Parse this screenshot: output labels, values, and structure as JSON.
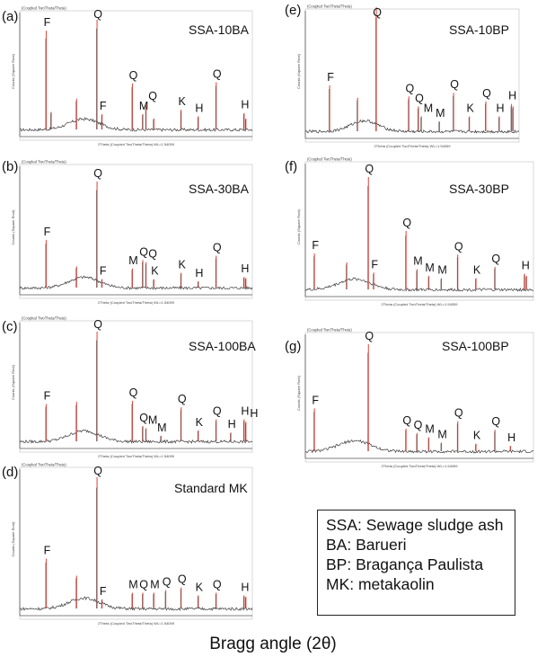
{
  "chart_data": [
    {
      "panel": "(a)",
      "sample": "SSA-10BA",
      "type": "line",
      "header": "(Coupled TwoTheta/Theta)",
      "ylabel": "Counts (Square Root)",
      "xlabel": "2Theta (Coupled TwoTheta/Theta) WL=1.54059",
      "xlim": [
        5,
        70
      ],
      "peaks": [
        {
          "x": 12.4,
          "h": 0.9,
          "label": "F"
        },
        {
          "x": 13.8,
          "h": 0.16,
          "label": ""
        },
        {
          "x": 20.9,
          "h": 0.28,
          "label": ""
        },
        {
          "x": 26.6,
          "h": 1.0,
          "label": "Q"
        },
        {
          "x": 28.0,
          "h": 0.14,
          "label": "F"
        },
        {
          "x": 36.5,
          "h": 0.42,
          "label": "Q"
        },
        {
          "x": 39.4,
          "h": 0.14,
          "label": "M"
        },
        {
          "x": 40.3,
          "h": 0.23,
          "label": "Q"
        },
        {
          "x": 42.5,
          "h": 0.1,
          "label": ""
        },
        {
          "x": 50.1,
          "h": 0.18,
          "label": "K"
        },
        {
          "x": 54.9,
          "h": 0.12,
          "label": "H"
        },
        {
          "x": 59.9,
          "h": 0.43,
          "label": "Q"
        },
        {
          "x": 67.7,
          "h": 0.15,
          "label": "H"
        },
        {
          "x": 68.2,
          "h": 0.1,
          "label": ""
        }
      ]
    },
    {
      "panel": "(b)",
      "sample": "SSA-30BA",
      "type": "line",
      "header": "(Coupled TwoTheta/Theta)",
      "ylabel": "Counts (Square Root)",
      "xlabel": "2Theta (Coupled TwoTheta/Theta) WL=1.54059",
      "xlim": [
        5,
        70
      ],
      "peaks": [
        {
          "x": 12.4,
          "h": 0.45,
          "label": "F"
        },
        {
          "x": 20.9,
          "h": 0.2,
          "label": ""
        },
        {
          "x": 26.6,
          "h": 1.0,
          "label": "Q"
        },
        {
          "x": 28.0,
          "h": 0.08,
          "label": "F"
        },
        {
          "x": 36.5,
          "h": 0.18,
          "label": "M"
        },
        {
          "x": 39.4,
          "h": 0.26,
          "label": "Q"
        },
        {
          "x": 40.3,
          "h": 0.24,
          "label": "Q"
        },
        {
          "x": 42.5,
          "h": 0.08,
          "label": "K"
        },
        {
          "x": 50.1,
          "h": 0.14,
          "label": "K"
        },
        {
          "x": 54.9,
          "h": 0.06,
          "label": "H"
        },
        {
          "x": 59.9,
          "h": 0.3,
          "label": "Q"
        },
        {
          "x": 67.7,
          "h": 0.1,
          "label": "H"
        },
        {
          "x": 68.2,
          "h": 0.09,
          "label": ""
        }
      ]
    },
    {
      "panel": "(c)",
      "sample": "SSA-100BA",
      "type": "line",
      "header": "(Coupled TwoTheta/Theta)",
      "ylabel": "Counts (Square Root)",
      "xlabel": "2Theta (Coupled TwoTheta/Theta) WL=1.54059",
      "xlim": [
        5,
        70
      ],
      "peaks": [
        {
          "x": 12.4,
          "h": 0.34,
          "label": "F"
        },
        {
          "x": 20.9,
          "h": 0.36,
          "label": ""
        },
        {
          "x": 26.6,
          "h": 1.0,
          "label": "Q"
        },
        {
          "x": 36.5,
          "h": 0.37,
          "label": "Q"
        },
        {
          "x": 39.4,
          "h": 0.14,
          "label": "Q"
        },
        {
          "x": 40.3,
          "h": 0.12,
          "label": "M"
        },
        {
          "x": 44.5,
          "h": 0.05,
          "label": "M"
        },
        {
          "x": 50.1,
          "h": 0.31,
          "label": "Q"
        },
        {
          "x": 54.9,
          "h": 0.1,
          "label": "K"
        },
        {
          "x": 59.9,
          "h": 0.2,
          "label": "Q"
        },
        {
          "x": 64.0,
          "h": 0.08,
          "label": "H"
        },
        {
          "x": 67.7,
          "h": 0.2,
          "label": "H"
        },
        {
          "x": 68.2,
          "h": 0.18,
          "label": "H"
        }
      ]
    },
    {
      "panel": "(d)",
      "sample": "Standard MK",
      "type": "line",
      "header": "(Coupled TwoTheta/Theta)",
      "ylabel": "Counts (Square Root)",
      "xlabel": "2Theta (Coupled TwoTheta/Theta) WL=1.54059",
      "xlim": [
        5,
        70
      ],
      "peaks": [
        {
          "x": 12.4,
          "h": 0.38,
          "label": "F"
        },
        {
          "x": 20.9,
          "h": 0.25,
          "label": ""
        },
        {
          "x": 26.6,
          "h": 1.0,
          "label": "Q"
        },
        {
          "x": 28.0,
          "h": 0.07,
          "label": "F"
        },
        {
          "x": 36.5,
          "h": 0.12,
          "label": "M"
        },
        {
          "x": 39.4,
          "h": 0.12,
          "label": "Q"
        },
        {
          "x": 42.5,
          "h": 0.12,
          "label": "M"
        },
        {
          "x": 45.8,
          "h": 0.14,
          "label": "Q"
        },
        {
          "x": 50.1,
          "h": 0.16,
          "label": "Q"
        },
        {
          "x": 54.9,
          "h": 0.1,
          "label": "K"
        },
        {
          "x": 59.9,
          "h": 0.12,
          "label": "Q"
        },
        {
          "x": 67.7,
          "h": 0.1,
          "label": "H"
        },
        {
          "x": 68.2,
          "h": 0.09,
          "label": ""
        }
      ]
    },
    {
      "panel": "(e)",
      "sample": "SSA-10BP",
      "type": "line",
      "header": "(Coupled TwoTheta/Theta)",
      "ylabel": "Counts (Square Root)",
      "xlabel": "2Theta (Coupled TwoTheta/Theta) WL=1.54059",
      "xlim": [
        5,
        70
      ],
      "peaks": [
        {
          "x": 12.4,
          "h": 0.37,
          "label": "F"
        },
        {
          "x": 20.9,
          "h": 0.27,
          "label": ""
        },
        {
          "x": 26.6,
          "h": 1.0,
          "label": "Q"
        },
        {
          "x": 36.5,
          "h": 0.28,
          "label": "Q"
        },
        {
          "x": 39.4,
          "h": 0.2,
          "label": "Q"
        },
        {
          "x": 40.3,
          "h": 0.12,
          "label": "M"
        },
        {
          "x": 45.8,
          "h": 0.08,
          "label": "M"
        },
        {
          "x": 50.1,
          "h": 0.31,
          "label": "Q"
        },
        {
          "x": 54.9,
          "h": 0.12,
          "label": "K"
        },
        {
          "x": 59.9,
          "h": 0.24,
          "label": "Q"
        },
        {
          "x": 64.0,
          "h": 0.12,
          "label": "H"
        },
        {
          "x": 67.7,
          "h": 0.22,
          "label": "H"
        },
        {
          "x": 68.2,
          "h": 0.2,
          "label": ""
        }
      ]
    },
    {
      "panel": "(f)",
      "sample": "SSA-30BP",
      "type": "line",
      "header": "(Coupled TwoTheta/Theta)",
      "ylabel": "Counts (Square Root)",
      "xlabel": "2Theta (Coupled TwoTheta/Theta) WL=1.54059",
      "xlim": [
        10,
        70
      ],
      "peaks": [
        {
          "x": 12.4,
          "h": 0.32,
          "label": "F"
        },
        {
          "x": 20.9,
          "h": 0.24,
          "label": ""
        },
        {
          "x": 26.6,
          "h": 1.0,
          "label": "Q"
        },
        {
          "x": 28.0,
          "h": 0.15,
          "label": "F"
        },
        {
          "x": 36.5,
          "h": 0.52,
          "label": "Q"
        },
        {
          "x": 39.4,
          "h": 0.18,
          "label": "M"
        },
        {
          "x": 42.5,
          "h": 0.12,
          "label": "M"
        },
        {
          "x": 45.8,
          "h": 0.1,
          "label": "M"
        },
        {
          "x": 50.1,
          "h": 0.31,
          "label": "Q"
        },
        {
          "x": 54.9,
          "h": 0.1,
          "label": "K"
        },
        {
          "x": 59.9,
          "h": 0.2,
          "label": "Q"
        },
        {
          "x": 67.7,
          "h": 0.14,
          "label": "H"
        },
        {
          "x": 68.2,
          "h": 0.12,
          "label": ""
        }
      ]
    },
    {
      "panel": "(g)",
      "sample": "SSA-100BP",
      "type": "line",
      "header": "(Coupled TwoTheta/Theta)",
      "ylabel": "Counts (Square Root)",
      "xlabel": "2Theta (Coupled TwoTheta/Theta) WL=1.54059",
      "xlim": [
        10,
        70
      ],
      "peaks": [
        {
          "x": 12.4,
          "h": 0.4,
          "label": "F"
        },
        {
          "x": 26.6,
          "h": 1.0,
          "label": "Q"
        },
        {
          "x": 36.5,
          "h": 0.21,
          "label": "Q"
        },
        {
          "x": 39.4,
          "h": 0.17,
          "label": "Q"
        },
        {
          "x": 42.5,
          "h": 0.13,
          "label": "M"
        },
        {
          "x": 45.8,
          "h": 0.08,
          "label": "M"
        },
        {
          "x": 50.1,
          "h": 0.28,
          "label": "Q"
        },
        {
          "x": 54.9,
          "h": 0.07,
          "label": "K"
        },
        {
          "x": 59.9,
          "h": 0.2,
          "label": "Q"
        },
        {
          "x": 64.0,
          "h": 0.05,
          "label": "H"
        }
      ]
    }
  ],
  "legend": [
    "SSA: Sewage sludge ash",
    "BA: Barueri",
    "BP: Bragança Paulista",
    "MK: metakaolin"
  ],
  "bottom_label": "Bragg angle (2θ)",
  "colors": {
    "trace": "#3a3a3a",
    "peak": "#e0524a",
    "axis": "#555555",
    "text": "#111111"
  }
}
